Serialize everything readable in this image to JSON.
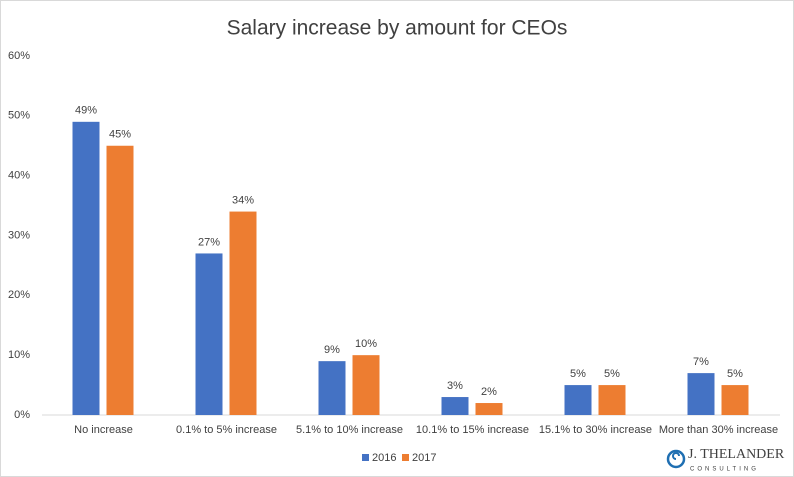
{
  "chart_data": {
    "type": "bar",
    "title": "Salary increase by amount for CEOs",
    "categories": [
      "No increase",
      "0.1% to 5% increase",
      "5.1% to 10% increase",
      "10.1% to 15% increase",
      "15.1% to 30% increase",
      "More than 30% increase"
    ],
    "series": [
      {
        "name": "2016",
        "color": "#4472c4",
        "values": [
          49,
          27,
          9,
          3,
          5,
          7
        ],
        "value_labels": [
          "49%",
          "27%",
          "9%",
          "3%",
          "5%",
          "7%"
        ]
      },
      {
        "name": "2017",
        "color": "#ed7d31",
        "values": [
          45,
          34,
          10,
          2,
          5,
          5
        ],
        "value_labels": [
          "45%",
          "34%",
          "10%",
          "2%",
          "5%",
          "5%"
        ]
      }
    ],
    "ylim": [
      0,
      60
    ],
    "yticks": [
      {
        "value": 0,
        "label": "0%"
      },
      {
        "value": 10,
        "label": "10%"
      },
      {
        "value": 20,
        "label": "20%"
      },
      {
        "value": 30,
        "label": "30%"
      },
      {
        "value": 40,
        "label": "40%"
      },
      {
        "value": 50,
        "label": "50%"
      },
      {
        "value": 60,
        "label": "60%"
      }
    ],
    "grid": false,
    "legend": "bottom"
  },
  "logo": {
    "name": "J. THELANDER",
    "tagline": "CONSULTING"
  }
}
